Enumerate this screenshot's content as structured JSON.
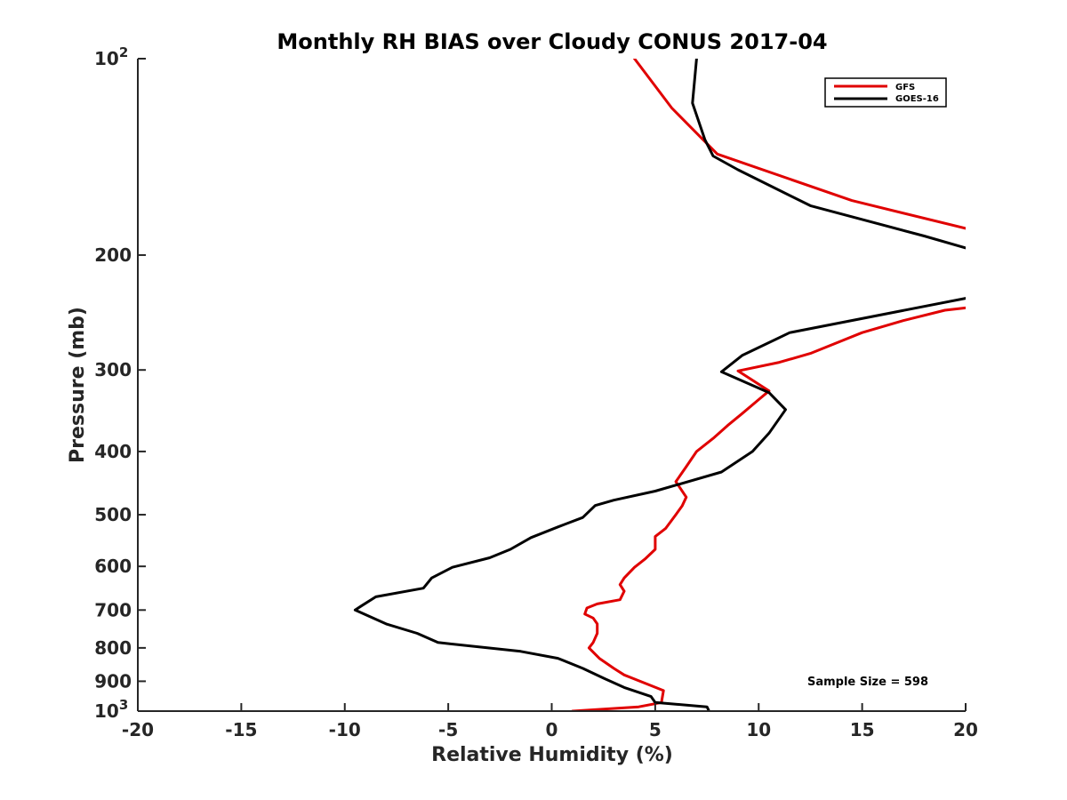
{
  "chart_data": {
    "type": "line",
    "title": "Monthly RH BIAS over Cloudy CONUS  2017-04",
    "xlabel": "Relative Humidity (%)",
    "ylabel": "Pressure (mb)",
    "xlim": [
      -20,
      20
    ],
    "ylim": [
      100,
      1000
    ],
    "y_scale": "log",
    "y_reversed": true,
    "grid": false,
    "legend_position": "top-right",
    "x_ticks": [
      {
        "value": -20,
        "label": "-20"
      },
      {
        "value": -15,
        "label": "-15"
      },
      {
        "value": -10,
        "label": "-10"
      },
      {
        "value": -5,
        "label": "-5"
      },
      {
        "value": 0,
        "label": "0"
      },
      {
        "value": 5,
        "label": "5"
      },
      {
        "value": 10,
        "label": "10"
      },
      {
        "value": 15,
        "label": "15"
      },
      {
        "value": 20,
        "label": "20"
      }
    ],
    "y_ticks": [
      {
        "value": 100,
        "label": "10",
        "exp": "2"
      },
      {
        "value": 200,
        "label": "200"
      },
      {
        "value": 300,
        "label": "300"
      },
      {
        "value": 400,
        "label": "400"
      },
      {
        "value": 500,
        "label": "500"
      },
      {
        "value": 600,
        "label": "600"
      },
      {
        "value": 700,
        "label": "700"
      },
      {
        "value": 800,
        "label": "800"
      },
      {
        "value": 900,
        "label": "900"
      },
      {
        "value": 1000,
        "label": "10",
        "exp": "3"
      }
    ],
    "annotation": "Sample Size = 598",
    "series": [
      {
        "name": "GFS",
        "color": "#e00000",
        "segments": [
          [
            [
              4.0,
              100
            ],
            [
              5.8,
              119
            ],
            [
              8.0,
              140
            ],
            [
              14.5,
              165
            ],
            [
              20.0,
              182
            ]
          ],
          [
            [
              20.0,
              241
            ],
            [
              19.0,
              243
            ],
            [
              17.0,
              252
            ],
            [
              15.0,
              263
            ],
            [
              12.5,
              283
            ],
            [
              11.0,
              292
            ],
            [
              9.0,
              301
            ],
            [
              10.5,
              323
            ],
            [
              10.0,
              333
            ],
            [
              9.2,
              350
            ],
            [
              8.5,
              365
            ],
            [
              7.8,
              382
            ],
            [
              7.0,
              400
            ],
            [
              6.5,
              422
            ],
            [
              6.0,
              445
            ],
            [
              6.5,
              470
            ],
            [
              6.3,
              485
            ],
            [
              6.0,
              500
            ],
            [
              5.5,
              525
            ],
            [
              5.0,
              540
            ],
            [
              5.0,
              565
            ],
            [
              4.5,
              585
            ],
            [
              4.0,
              602
            ],
            [
              3.5,
              625
            ],
            [
              3.3,
              640
            ],
            [
              3.5,
              655
            ],
            [
              3.3,
              675
            ],
            [
              2.2,
              685
            ],
            [
              1.7,
              695
            ],
            [
              1.6,
              710
            ],
            [
              2.0,
              720
            ],
            [
              2.2,
              735
            ],
            [
              2.2,
              760
            ],
            [
              2.0,
              785
            ],
            [
              1.8,
              800
            ],
            [
              2.3,
              830
            ],
            [
              3.0,
              860
            ],
            [
              3.5,
              880
            ],
            [
              5.4,
              930
            ],
            [
              5.3,
              970
            ],
            [
              4.2,
              985
            ],
            [
              1.0,
              1000
            ]
          ]
        ]
      },
      {
        "name": "GOES-16",
        "color": "#000000",
        "segments": [
          [
            [
              7.0,
              100
            ],
            [
              6.8,
              117
            ],
            [
              7.4,
              133
            ],
            [
              7.8,
              141
            ],
            [
              9.0,
              148
            ],
            [
              12.5,
              168
            ],
            [
              18.0,
              187
            ],
            [
              20.0,
              195
            ]
          ],
          [
            [
              20.0,
              233
            ],
            [
              11.5,
              263
            ],
            [
              9.2,
              285
            ],
            [
              8.2,
              302
            ],
            [
              10.5,
              325
            ],
            [
              11.3,
              345
            ],
            [
              10.5,
              375
            ],
            [
              9.7,
              400
            ],
            [
              8.2,
              430
            ],
            [
              5.0,
              460
            ],
            [
              3.0,
              475
            ],
            [
              2.1,
              484
            ],
            [
              1.5,
              505
            ],
            [
              0.3,
              522
            ],
            [
              -1.0,
              542
            ],
            [
              -2.0,
              565
            ],
            [
              -3.0,
              582
            ],
            [
              -4.8,
              602
            ],
            [
              -5.8,
              625
            ],
            [
              -6.2,
              648
            ],
            [
              -8.5,
              668
            ],
            [
              -9.2,
              690
            ],
            [
              -9.5,
              700
            ],
            [
              -8.0,
              735
            ],
            [
              -6.5,
              760
            ],
            [
              -5.5,
              785
            ],
            [
              -1.5,
              810
            ],
            [
              0.3,
              830
            ],
            [
              1.5,
              860
            ],
            [
              2.5,
              890
            ],
            [
              3.5,
              920
            ],
            [
              4.8,
              950
            ],
            [
              5.0,
              970
            ],
            [
              7.5,
              985
            ],
            [
              7.6,
              1000
            ]
          ]
        ]
      }
    ]
  }
}
